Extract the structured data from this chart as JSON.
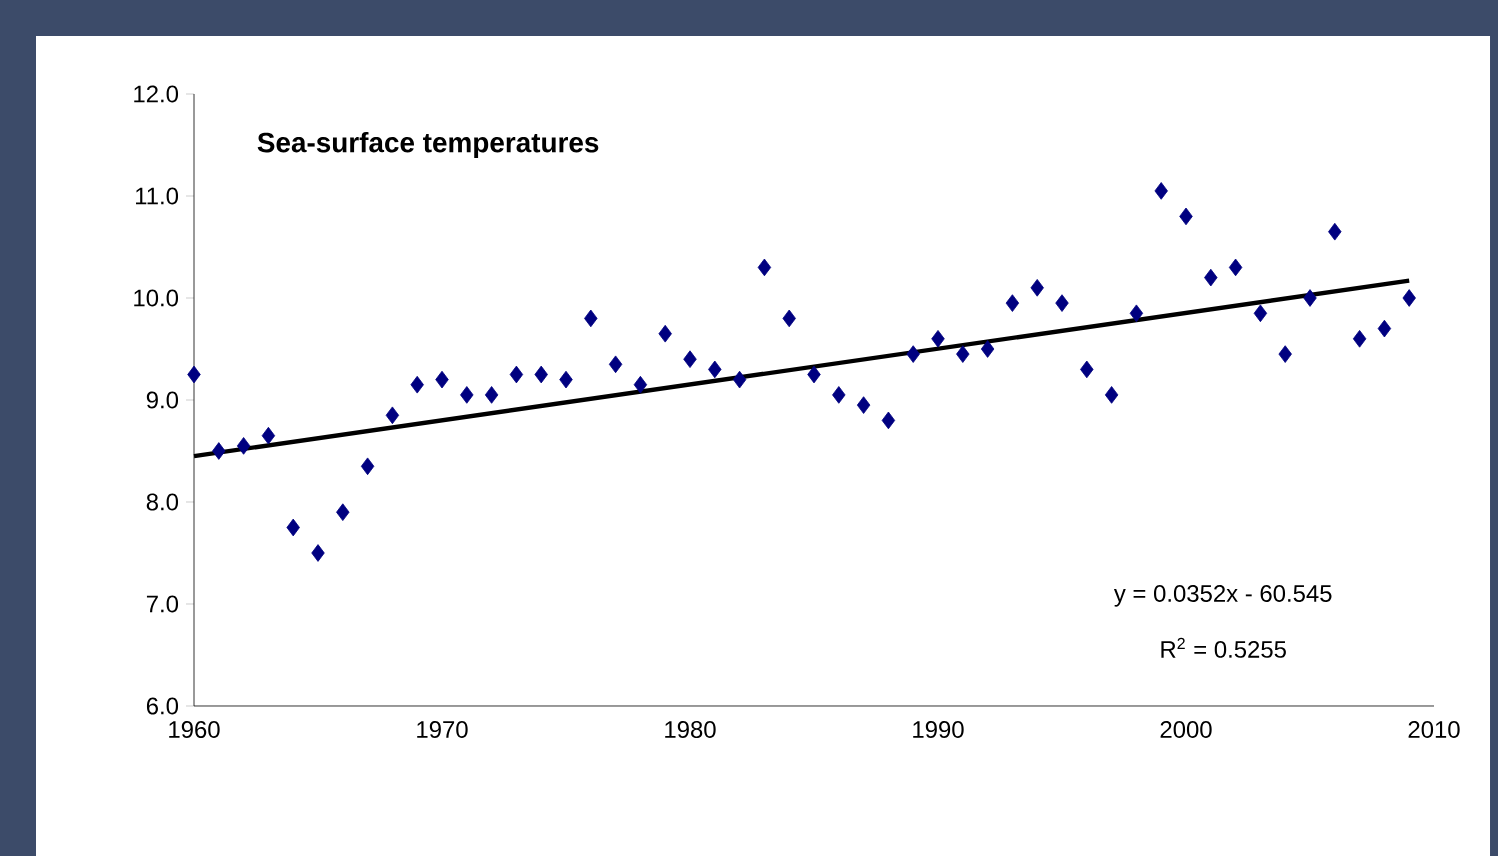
{
  "chart_data": {
    "type": "scatter",
    "title": "Sea-surface temperatures",
    "x": [
      1960,
      1961,
      1962,
      1963,
      1964,
      1965,
      1966,
      1967,
      1968,
      1969,
      1970,
      1971,
      1972,
      1973,
      1974,
      1975,
      1976,
      1977,
      1978,
      1979,
      1980,
      1981,
      1982,
      1983,
      1984,
      1985,
      1986,
      1987,
      1988,
      1989,
      1990,
      1991,
      1992,
      1993,
      1994,
      1995,
      1996,
      1997,
      1998,
      1999,
      2000,
      2001,
      2002,
      2003,
      2004,
      2005,
      2006,
      2007,
      2008,
      2009
    ],
    "series": [
      {
        "color": "#000080",
        "marker": "diamond",
        "values": [
          9.25,
          8.5,
          8.55,
          8.65,
          7.75,
          7.5,
          7.9,
          8.35,
          8.85,
          9.15,
          9.2,
          9.05,
          9.05,
          9.25,
          9.25,
          9.2,
          9.8,
          9.35,
          9.15,
          9.65,
          9.4,
          9.3,
          9.2,
          10.3,
          9.8,
          9.25,
          9.05,
          8.95,
          8.8,
          9.45,
          9.6,
          9.45,
          9.5,
          9.95,
          10.1,
          9.95,
          9.3,
          9.05,
          9.85,
          11.05,
          10.8,
          10.2,
          10.3,
          9.85,
          9.45,
          10.0,
          10.65,
          9.6,
          9.7,
          10.0
        ]
      },
      {
        "type": "line",
        "color": "#000000",
        "marker": "none",
        "x": [
          1960,
          2009
        ],
        "values": [
          8.45,
          10.17
        ]
      }
    ],
    "xlim": [
      1960,
      2010
    ],
    "xticks": [
      1960,
      1970,
      1980,
      1990,
      2000,
      2010
    ],
    "ylim": [
      6,
      12
    ],
    "yticks": [
      {
        "value": 6,
        "label": "6.0"
      },
      {
        "value": 7,
        "label": "7.0"
      },
      {
        "value": 8,
        "label": "8.0"
      },
      {
        "value": 9,
        "label": "9.0"
      },
      {
        "value": 10,
        "label": "10.0"
      },
      {
        "value": 11,
        "label": "11.0"
      },
      {
        "value": 12,
        "label": "12.0"
      }
    ],
    "grid": false,
    "annotations": [
      "y = 0.0352x - 60.545",
      "R$^{2}$ = 0.5255"
    ]
  }
}
